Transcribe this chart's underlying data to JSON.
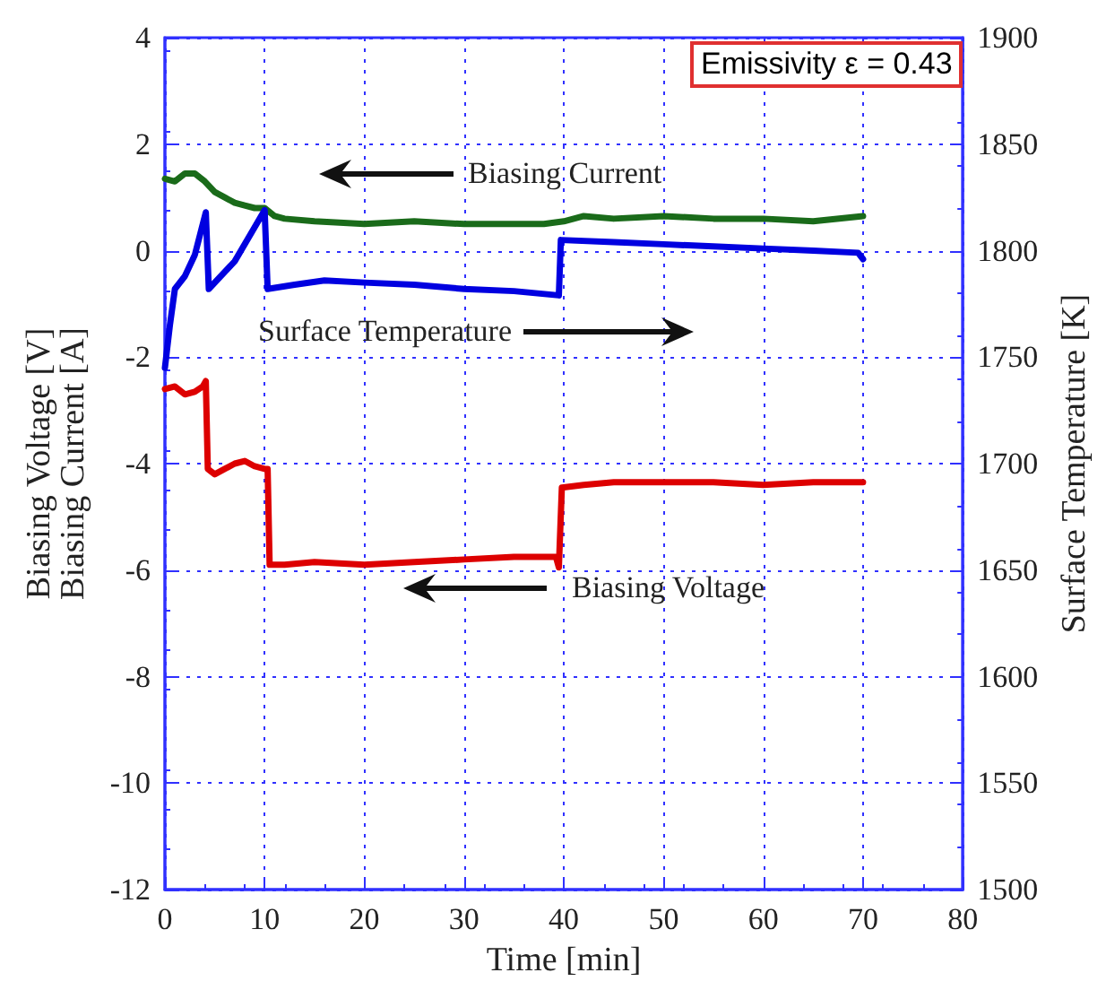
{
  "chart_data": {
    "type": "line",
    "xlabel": "Time [min]",
    "ylabel": "Biasing Voltage [V]\nBiasing Current [A]",
    "y2label": "Surface Temperature [K]",
    "xlim": [
      0,
      80
    ],
    "xticks": [
      0,
      10,
      20,
      30,
      40,
      50,
      60,
      70,
      80
    ],
    "ylim": [
      -12,
      4
    ],
    "yticks": [
      -12,
      -10,
      -8,
      -6,
      -4,
      -2,
      0,
      2,
      4
    ],
    "y2lim": [
      1500,
      1900
    ],
    "y2ticks": [
      1500,
      1550,
      1600,
      1650,
      1700,
      1750,
      1800,
      1850,
      1900
    ],
    "grid": true,
    "marker": "none",
    "line_style": "solid",
    "series": [
      {
        "color": "#1a6b1a",
        "x": [
          0,
          1,
          2,
          3,
          4,
          5,
          6,
          7,
          8,
          9,
          10,
          11,
          12,
          15,
          20,
          25,
          30,
          35,
          38,
          40,
          42,
          45,
          50,
          55,
          60,
          65,
          70
        ],
        "values": [
          1.35,
          1.3,
          1.45,
          1.45,
          1.3,
          1.1,
          1.0,
          0.9,
          0.85,
          0.8,
          0.8,
          0.65,
          0.6,
          0.55,
          0.5,
          0.55,
          0.5,
          0.5,
          0.5,
          0.55,
          0.65,
          0.6,
          0.65,
          0.6,
          0.6,
          0.55,
          0.65
        ]
      },
      {
        "color": "#0000e0",
        "axis": "y2",
        "x": [
          0,
          0.5,
          1,
          2,
          3,
          4.1,
          4.4,
          7,
          10,
          10.3,
          13,
          16,
          20,
          25,
          30,
          35,
          39.5,
          39.7,
          45,
          50,
          55,
          60,
          65,
          69.5,
          70
        ],
        "values": [
          1745,
          1765,
          1782,
          1788,
          1798,
          1818,
          1782,
          1795,
          1819,
          1782,
          1784,
          1786,
          1785,
          1784,
          1782,
          1781,
          1779,
          1805,
          1804,
          1803,
          1802,
          1801,
          1800,
          1799,
          1796
        ]
      },
      {
        "color": "#dd0000",
        "x": [
          0,
          1,
          2,
          3,
          3.8,
          4.1,
          4.3,
          5,
          6,
          7,
          8,
          9,
          10,
          10.3,
          10.5,
          12,
          15,
          20,
          25,
          30,
          35,
          39.2,
          39.5,
          39.8,
          42,
          45,
          50,
          55,
          60,
          65,
          70
        ],
        "values": [
          -2.6,
          -2.55,
          -2.7,
          -2.65,
          -2.55,
          -2.45,
          -4.1,
          -4.2,
          -4.1,
          -4.0,
          -3.95,
          -4.05,
          -4.1,
          -4.1,
          -5.9,
          -5.9,
          -5.85,
          -5.9,
          -5.85,
          -5.8,
          -5.75,
          -5.75,
          -5.95,
          -4.45,
          -4.4,
          -4.35,
          -4.35,
          -4.35,
          -4.4,
          -4.35,
          -4.35
        ]
      }
    ],
    "annotations": [
      "Emissivity  ε = 0.43",
      "Biasing Current",
      "Surface Temperature",
      "Biasing Voltage"
    ]
  }
}
